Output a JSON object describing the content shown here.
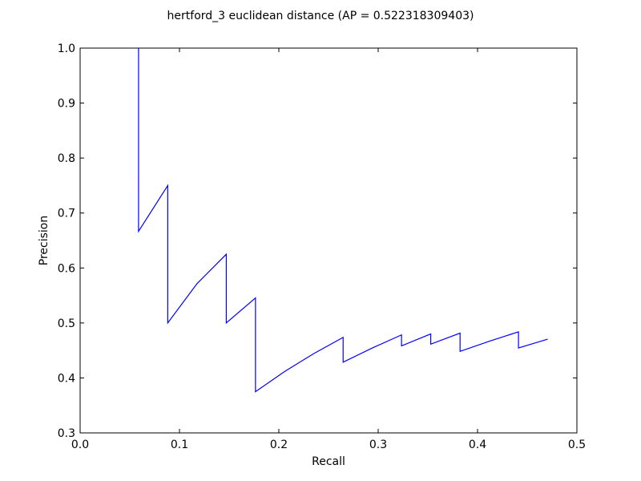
{
  "chart_data": {
    "type": "line",
    "title": "hertford_3 euclidean distance  (AP = 0.522318309403)",
    "xlabel": "Recall",
    "ylabel": "Precision",
    "xlim": [
      0.0,
      0.5
    ],
    "ylim": [
      0.3,
      1.0
    ],
    "xticks": [
      "0.0",
      "0.1",
      "0.2",
      "0.3",
      "0.4",
      "0.5"
    ],
    "yticks": [
      "0.3",
      "0.4",
      "0.5",
      "0.6",
      "0.7",
      "0.8",
      "0.9",
      "1.0"
    ],
    "grid": false,
    "series": [
      {
        "color": "#0000ff",
        "x": [
          0.0588,
          0.0588,
          0.0882,
          0.0882,
          0.1176,
          0.1471,
          0.1471,
          0.1765,
          0.1765,
          0.2059,
          0.2353,
          0.2647,
          0.2647,
          0.2941,
          0.3235,
          0.3235,
          0.3529,
          0.3529,
          0.3824,
          0.3824,
          0.4118,
          0.4412,
          0.4412,
          0.4706
        ],
        "y": [
          1.0,
          0.6667,
          0.75,
          0.5,
          0.5714,
          0.625,
          0.5,
          0.5455,
          0.375,
          0.4118,
          0.4444,
          0.4737,
          0.4286,
          0.4545,
          0.4783,
          0.4583,
          0.48,
          0.4615,
          0.4815,
          0.4483,
          0.4667,
          0.4839,
          0.4545,
          0.4706
        ]
      }
    ]
  }
}
